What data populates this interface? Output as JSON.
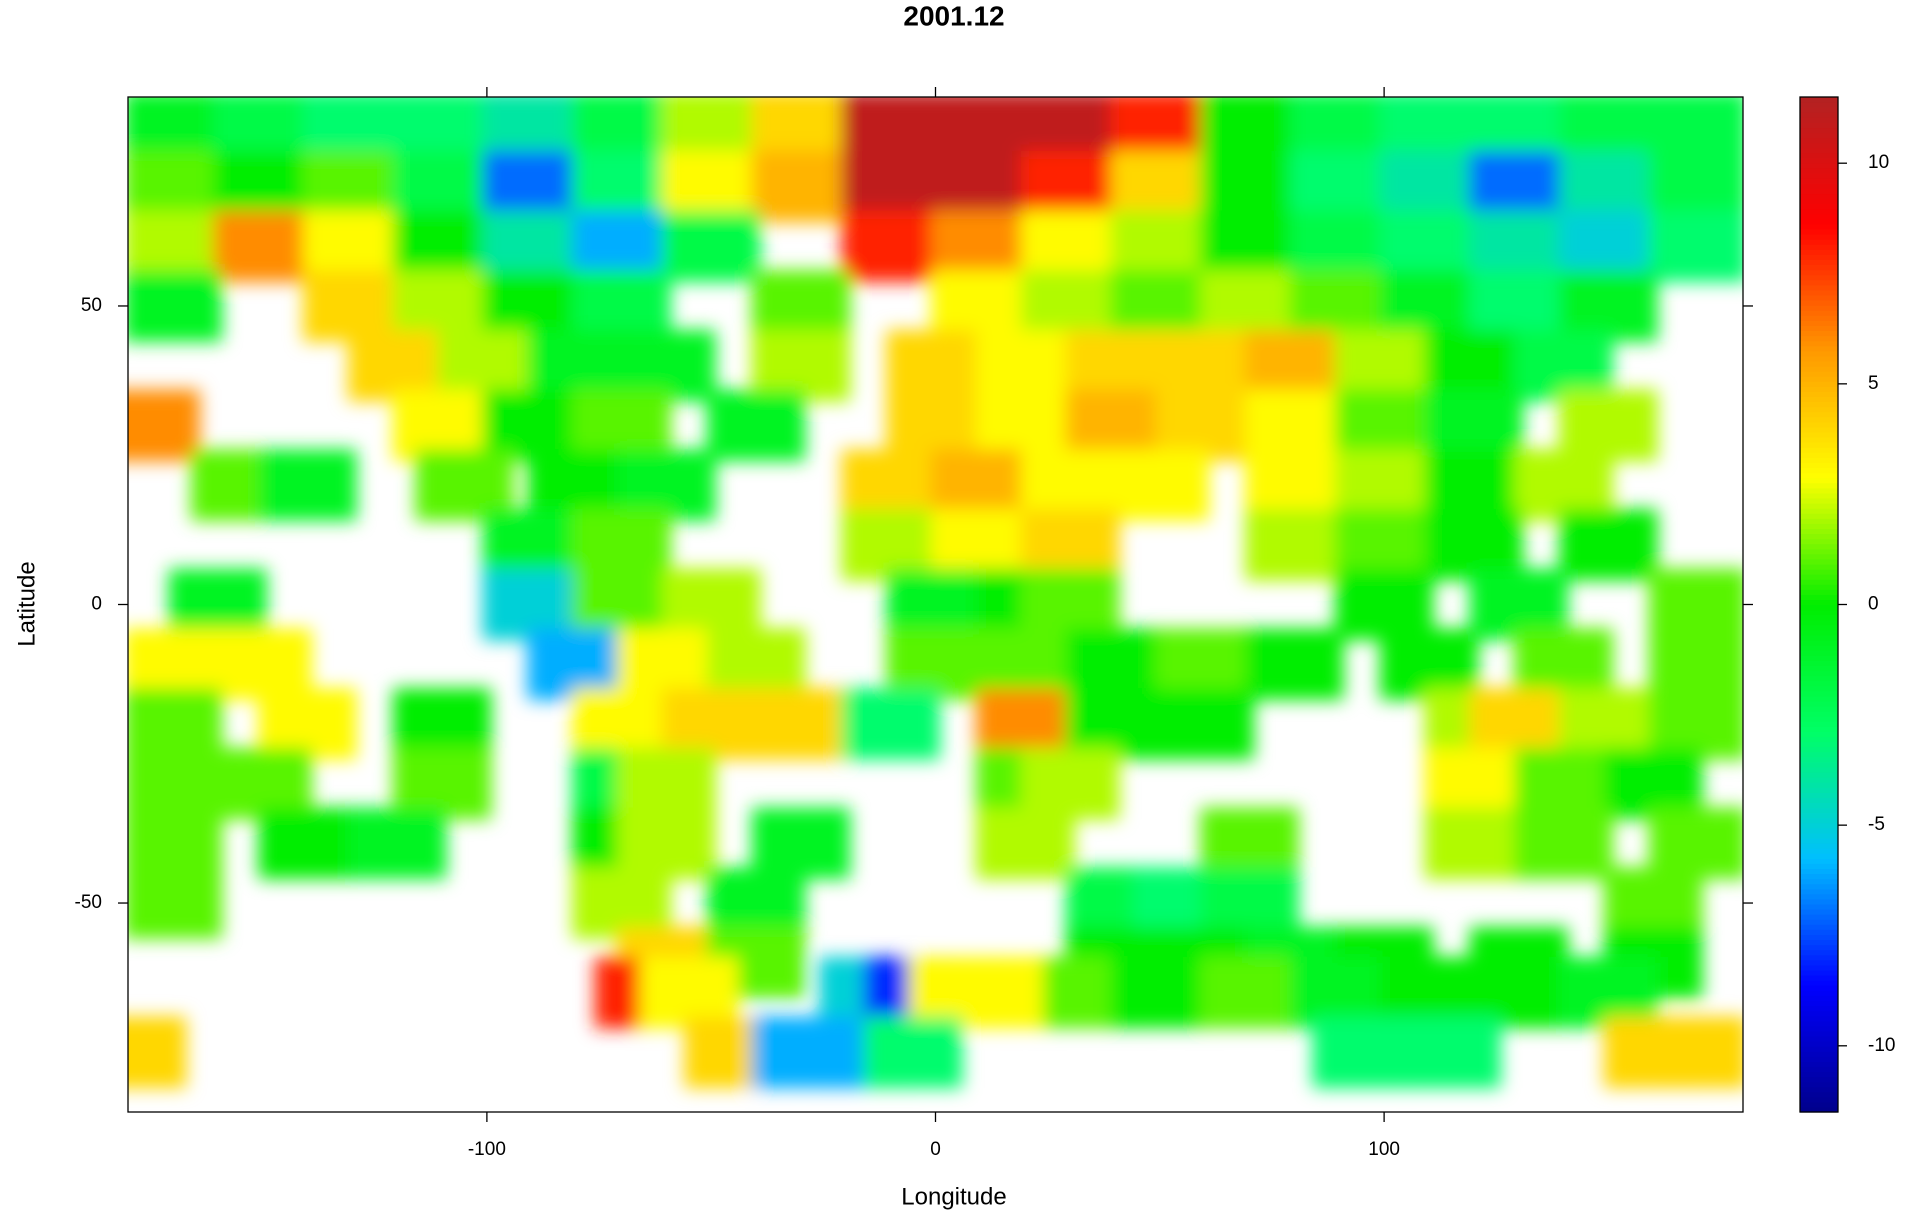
{
  "chart_data": {
    "type": "heatmap",
    "title": "2001.12",
    "xlabel": "Longitude",
    "ylabel": "Latitude",
    "xlim": [
      -180,
      180
    ],
    "ylim": [
      -85,
      85
    ],
    "xticks": [
      -100,
      0,
      100
    ],
    "yticks": [
      -50,
      0,
      50
    ],
    "zlim": [
      -11.5,
      11.5
    ],
    "zticks": [
      -10,
      -5,
      0,
      5,
      10
    ],
    "colormap": [
      "#00008b",
      "#0000ff",
      "#00bfff",
      "#00ff66",
      "#00ee00",
      "#ffff00",
      "#ff9900",
      "#ff0000",
      "#b22222"
    ],
    "cells": {
      "lon": [
        -170,
        -150,
        -130,
        -110,
        -90,
        -70,
        -50,
        -30,
        -10,
        10,
        30,
        50,
        70,
        90,
        110,
        130,
        150,
        170,
        -170,
        -150,
        -130,
        -110,
        -90,
        -70,
        -50,
        -30,
        -10,
        10,
        30,
        50,
        70,
        90,
        110,
        130,
        150,
        170,
        -170,
        -150,
        -130,
        -110,
        -90,
        -70,
        -50,
        -10,
        10,
        30,
        50,
        70,
        90,
        110,
        130,
        150,
        170,
        -170,
        -130,
        -110,
        -90,
        -70,
        -30,
        10,
        30,
        50,
        70,
        90,
        110,
        130,
        150,
        -120,
        -100,
        -80,
        -60,
        -30,
        0,
        20,
        40,
        60,
        80,
        100,
        120,
        140,
        -175,
        -110,
        -90,
        -70,
        -40,
        0,
        20,
        40,
        60,
        80,
        100,
        120,
        150,
        -155,
        -140,
        -105,
        -80,
        -60,
        -10,
        10,
        30,
        50,
        80,
        100,
        120,
        140,
        -90,
        -70,
        -10,
        10,
        30,
        80,
        100,
        120,
        150,
        -160,
        -90,
        -70,
        -50,
        0,
        20,
        30,
        100,
        130,
        170,
        -170,
        -150,
        -80,
        -60,
        -40,
        0,
        20,
        40,
        60,
        80,
        110,
        140,
        170,
        -170,
        -140,
        -110,
        -70,
        -50,
        -30,
        -10,
        20,
        40,
        60,
        120,
        130,
        150,
        170,
        -170,
        -150,
        -110,
        -70,
        -60,
        20,
        30,
        120,
        140,
        160,
        -170,
        -140,
        -120,
        -70,
        -60,
        -30,
        20,
        70,
        120,
        140,
        170,
        -170,
        -70,
        -40,
        40,
        55,
        70,
        160,
        -60,
        -50,
        -40,
        40,
        60,
        80,
        100,
        130,
        160,
        -65,
        -55,
        -15,
        -5,
        5,
        15,
        35,
        50,
        70,
        90,
        110,
        130,
        150,
        -178,
        -45,
        -30,
        -15,
        -5,
        95,
        115,
        160,
        170
      ],
      "lat": [
        80,
        80,
        80,
        80,
        80,
        80,
        80,
        80,
        80,
        80,
        80,
        80,
        80,
        80,
        80,
        80,
        80,
        80,
        70,
        70,
        70,
        70,
        70,
        70,
        70,
        70,
        70,
        70,
        70,
        70,
        70,
        70,
        70,
        70,
        70,
        70,
        60,
        60,
        60,
        60,
        60,
        60,
        60,
        60,
        60,
        60,
        60,
        60,
        60,
        60,
        60,
        60,
        60,
        50,
        50,
        50,
        50,
        50,
        50,
        50,
        50,
        50,
        50,
        50,
        50,
        50,
        50,
        40,
        40,
        40,
        40,
        40,
        40,
        40,
        40,
        40,
        40,
        40,
        40,
        40,
        30,
        30,
        30,
        30,
        30,
        30,
        30,
        30,
        30,
        30,
        30,
        30,
        30,
        20,
        20,
        20,
        20,
        20,
        20,
        20,
        20,
        20,
        20,
        20,
        20,
        20,
        10,
        10,
        10,
        10,
        10,
        10,
        10,
        10,
        10,
        0,
        0,
        0,
        0,
        0,
        0,
        0,
        0,
        0,
        0,
        -10,
        -10,
        -10,
        -10,
        -10,
        -10,
        -10,
        -10,
        -10,
        -10,
        -10,
        -10,
        -10,
        -20,
        -20,
        -20,
        -20,
        -20,
        -20,
        -20,
        -20,
        -20,
        -20,
        -20,
        -20,
        -20,
        -20,
        -30,
        -30,
        -30,
        -30,
        -30,
        -30,
        -30,
        -30,
        -30,
        -30,
        -40,
        -40,
        -40,
        -40,
        -40,
        -40,
        -40,
        -40,
        -40,
        -40,
        -40,
        -50,
        -50,
        -50,
        -50,
        -50,
        -50,
        -50,
        -60,
        -60,
        -60,
        -60,
        -60,
        -60,
        -60,
        -60,
        -60,
        -65,
        -65,
        -65,
        -65,
        -65,
        -65,
        -65,
        -65,
        -65,
        -65,
        -65,
        -65,
        -65,
        -75,
        -75,
        -75,
        -75,
        -75,
        -75,
        -75,
        -75,
        -75
      ],
      "values": [
        -1,
        -2,
        -3,
        -3,
        -4,
        -2,
        2,
        4,
        11,
        11,
        11,
        8,
        0,
        -2,
        -3,
        -3,
        -2,
        -2,
        1,
        0,
        1,
        -2,
        -7,
        -3,
        3,
        5,
        11,
        11,
        8,
        4,
        0,
        -3,
        -4,
        -7,
        -4,
        -2,
        2,
        6,
        3,
        0,
        -4,
        -6,
        -2,
        8,
        6,
        3,
        2,
        0,
        -2,
        -3,
        -4,
        -5,
        -3,
        -1,
        4,
        2,
        0,
        -2,
        1,
        3,
        2,
        1,
        2,
        1,
        -1,
        -3,
        -1,
        4,
        2,
        -1,
        -1,
        2,
        4,
        3,
        4,
        4,
        5,
        2,
        0,
        -2,
        6,
        3,
        0,
        1,
        -1,
        4,
        3,
        5,
        4,
        3,
        1,
        -1,
        2,
        1,
        -1,
        1,
        0,
        -1,
        4,
        5,
        3,
        3,
        3,
        2,
        0,
        2,
        -1,
        1,
        2,
        3,
        4,
        2,
        1,
        0,
        0,
        -1,
        -5,
        1,
        2,
        -1,
        0,
        1,
        0,
        -1,
        1,
        3,
        3,
        -6,
        3,
        2,
        1,
        1,
        0,
        1,
        0,
        0,
        1,
        1,
        1,
        3,
        0,
        3,
        4,
        4,
        -3,
        6,
        0,
        0,
        2,
        4,
        2,
        1,
        1,
        1,
        1,
        -2,
        2,
        1,
        2,
        3,
        1,
        0,
        1,
        0,
        -1,
        0,
        2,
        -1,
        2,
        1,
        2,
        1,
        1,
        1,
        2,
        -1,
        -2,
        -3,
        -2,
        1,
        4,
        4,
        1,
        0,
        0,
        -1,
        0,
        0,
        0,
        8,
        3,
        -5,
        -8,
        3,
        3,
        1,
        0,
        1,
        -1,
        0,
        0,
        -1,
        4,
        4,
        -6,
        -6,
        -3,
        -3,
        -3,
        4,
        4
      ]
    }
  }
}
